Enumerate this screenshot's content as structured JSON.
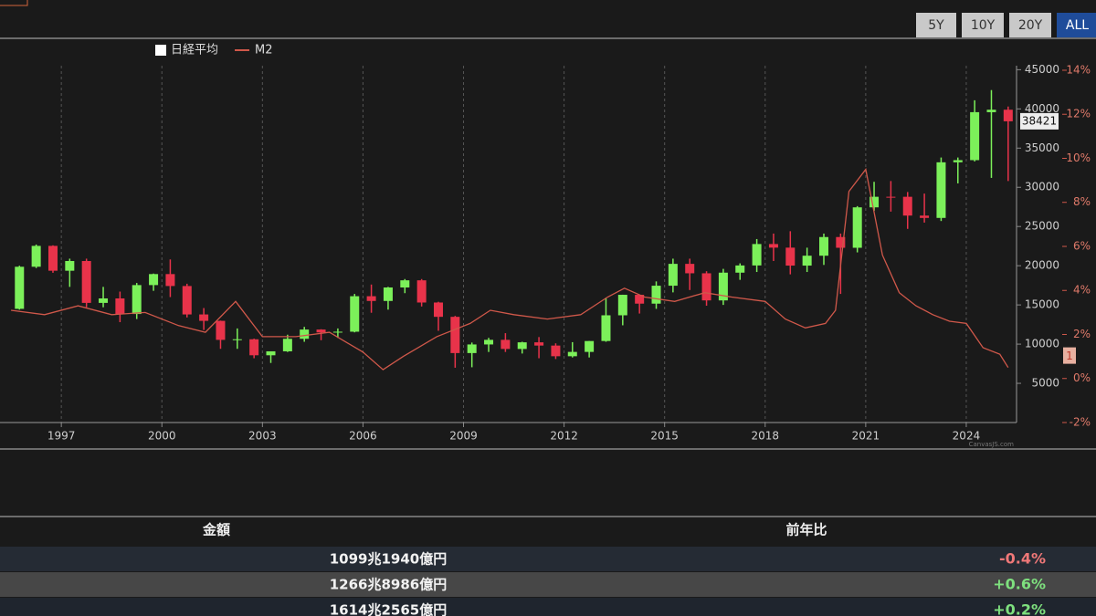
{
  "range_buttons": [
    "5Y",
    "10Y",
    "20Y",
    "ALL"
  ],
  "active_button": "ALL",
  "chart_data": {
    "type": "candlestick",
    "credit": "CanvasJS.com",
    "xlim": [
      1995.17,
      2025.5
    ],
    "xticks": [
      1997,
      2000,
      2003,
      2006,
      2009,
      2012,
      2015,
      2018,
      2021,
      2024
    ],
    "grid": true,
    "ylim": [
      0,
      49000
    ],
    "yticks": [
      5000,
      10000,
      15000,
      20000,
      25000,
      30000,
      35000,
      40000,
      45000
    ],
    "y2lim": [
      -2,
      15.45
    ],
    "y2ticks": [
      {
        "value": -2,
        "label": "-2%"
      },
      {
        "value": 0,
        "label": "0%"
      },
      {
        "value": 2,
        "label": "2%"
      },
      {
        "value": 4,
        "label": "4%"
      },
      {
        "value": 6,
        "label": "6%"
      },
      {
        "value": 8,
        "label": "8%"
      },
      {
        "value": 10,
        "label": "10%"
      },
      {
        "value": 12,
        "label": "12%"
      },
      {
        "value": 14,
        "label": "14%"
      }
    ],
    "y2_last_label": 1,
    "series": [
      {
        "name": "日経平均",
        "type": "candlestick",
        "color": "#ffffff",
        "up_color": "#7cf05a",
        "down_color": "#e8334a",
        "x": [
          1995.75,
          1996.25,
          1996.75,
          1997.25,
          1997.75,
          1998.25,
          1998.75,
          1999.25,
          1999.75,
          2000.25,
          2000.75,
          2001.25,
          2001.75,
          2002.25,
          2002.75,
          2003.25,
          2003.75,
          2004.25,
          2004.75,
          2005.25,
          2005.75,
          2006.25,
          2006.75,
          2007.25,
          2007.75,
          2008.25,
          2008.75,
          2009.25,
          2009.75,
          2010.25,
          2010.75,
          2011.25,
          2011.75,
          2012.25,
          2012.75,
          2013.25,
          2013.75,
          2014.25,
          2014.75,
          2015.25,
          2015.75,
          2016.25,
          2016.75,
          2017.25,
          2017.75,
          2018.25,
          2018.75,
          2019.25,
          2019.75,
          2020.25,
          2020.75,
          2021.25,
          2021.75,
          2022.25,
          2022.75,
          2023.25,
          2023.75,
          2024.25,
          2024.75,
          2025.25
        ],
        "open": [
          14500,
          19868,
          22530,
          19361,
          20600,
          15258,
          15830,
          13842,
          17530,
          18934,
          17411,
          13785,
          12969,
          10542,
          10621,
          8578,
          9083,
          10676,
          11858,
          11488,
          11584,
          16111,
          15505,
          17225,
          18138,
          15307,
          13481,
          8859,
          9958,
          10546,
          9382,
          10228,
          9816,
          8455,
          9006,
          10395,
          13677,
          16291,
          15162,
          17450,
          20236,
          19034,
          15576,
          19114,
          20033,
          22765,
          22305,
          20015,
          21276,
          23657,
          22288,
          27444,
          28792,
          28791,
          26393,
          26095,
          33189,
          33464,
          39583,
          39895
        ],
        "high": [
          20000,
          22700,
          22600,
          20900,
          20900,
          17300,
          16700,
          17800,
          19000,
          20800,
          17700,
          14600,
          13000,
          12000,
          10700,
          9000,
          11200,
          12200,
          11900,
          12000,
          16400,
          17600,
          17300,
          18300,
          18300,
          15400,
          13600,
          10200,
          10800,
          11400,
          10300,
          10900,
          10100,
          10250,
          10400,
          15900,
          16300,
          16300,
          18000,
          20900,
          20900,
          19300,
          19600,
          20300,
          23400,
          24100,
          24400,
          22300,
          24100,
          24100,
          27600,
          30700,
          30800,
          29400,
          29200,
          33800,
          33800,
          41100,
          42400,
          40300
        ],
        "low": [
          14400,
          19700,
          19100,
          17300,
          14700,
          14700,
          12800,
          13200,
          16800,
          16000,
          13400,
          11800,
          9400,
          9400,
          8200,
          7600,
          9000,
          10300,
          10500,
          10800,
          11500,
          14000,
          14400,
          16500,
          14800,
          11700,
          6990,
          7050,
          9000,
          9000,
          8800,
          8200,
          8100,
          8300,
          8300,
          10300,
          12400,
          13900,
          14500,
          16600,
          16900,
          14900,
          15000,
          18200,
          19200,
          20600,
          18900,
          19200,
          20100,
          16400,
          21700,
          27000,
          26900,
          24700,
          25500,
          25700,
          30500,
          33300,
          31200,
          30800
        ],
        "close": [
          19868,
          22530,
          19361,
          20600,
          15258,
          15830,
          13842,
          17530,
          18934,
          17411,
          13785,
          12969,
          10542,
          10621,
          8578,
          9083,
          10676,
          11858,
          11488,
          11584,
          16111,
          15505,
          17225,
          18138,
          15307,
          13481,
          8859,
          9958,
          10546,
          9382,
          10228,
          9816,
          8455,
          9006,
          10395,
          13677,
          16291,
          15162,
          17450,
          20236,
          19034,
          15576,
          19114,
          20033,
          22765,
          22305,
          20015,
          21276,
          23657,
          22288,
          27444,
          28792,
          28791,
          26393,
          26095,
          33189,
          33464,
          39583,
          39895,
          38421
        ]
      },
      {
        "name": "M2",
        "type": "line",
        "axis": "y2",
        "color": "#d0584a",
        "x": [
          1995.5,
          1996.5,
          1997.5,
          1998.5,
          1999.5,
          2000.5,
          2001.3,
          2002.2,
          2003.0,
          2004.0,
          2005.0,
          2006.0,
          2006.6,
          2007.2,
          2008.2,
          2009.2,
          2009.8,
          2010.5,
          2011.5,
          2012.5,
          2013.3,
          2013.8,
          2014.4,
          2015.3,
          2016.2,
          2017.0,
          2018.0,
          2018.6,
          2019.2,
          2019.8,
          2020.1,
          2020.5,
          2021.0,
          2021.5,
          2022.0,
          2022.5,
          2023.0,
          2023.5,
          2024.0,
          2024.5,
          2025.0,
          2025.25
        ],
        "values": [
          3.1,
          2.9,
          3.3,
          2.9,
          3.0,
          2.4,
          2.1,
          3.5,
          1.9,
          1.9,
          2.1,
          1.2,
          0.4,
          1.0,
          1.9,
          2.5,
          3.1,
          2.9,
          2.7,
          2.9,
          3.7,
          4.1,
          3.7,
          3.5,
          3.9,
          3.7,
          3.5,
          2.7,
          2.3,
          2.5,
          3.1,
          8.5,
          9.5,
          5.6,
          3.9,
          3.3,
          2.9,
          2.6,
          2.5,
          1.4,
          1.1,
          0.5
        ]
      }
    ]
  },
  "table": {
    "headers": [
      "金額",
      "前年比"
    ],
    "rows": [
      [
        "1099兆1940億円",
        "-0.4%"
      ],
      [
        "1266兆8986億円",
        "+0.6%"
      ],
      [
        "1614兆2565億円",
        "+0.2%"
      ]
    ]
  }
}
